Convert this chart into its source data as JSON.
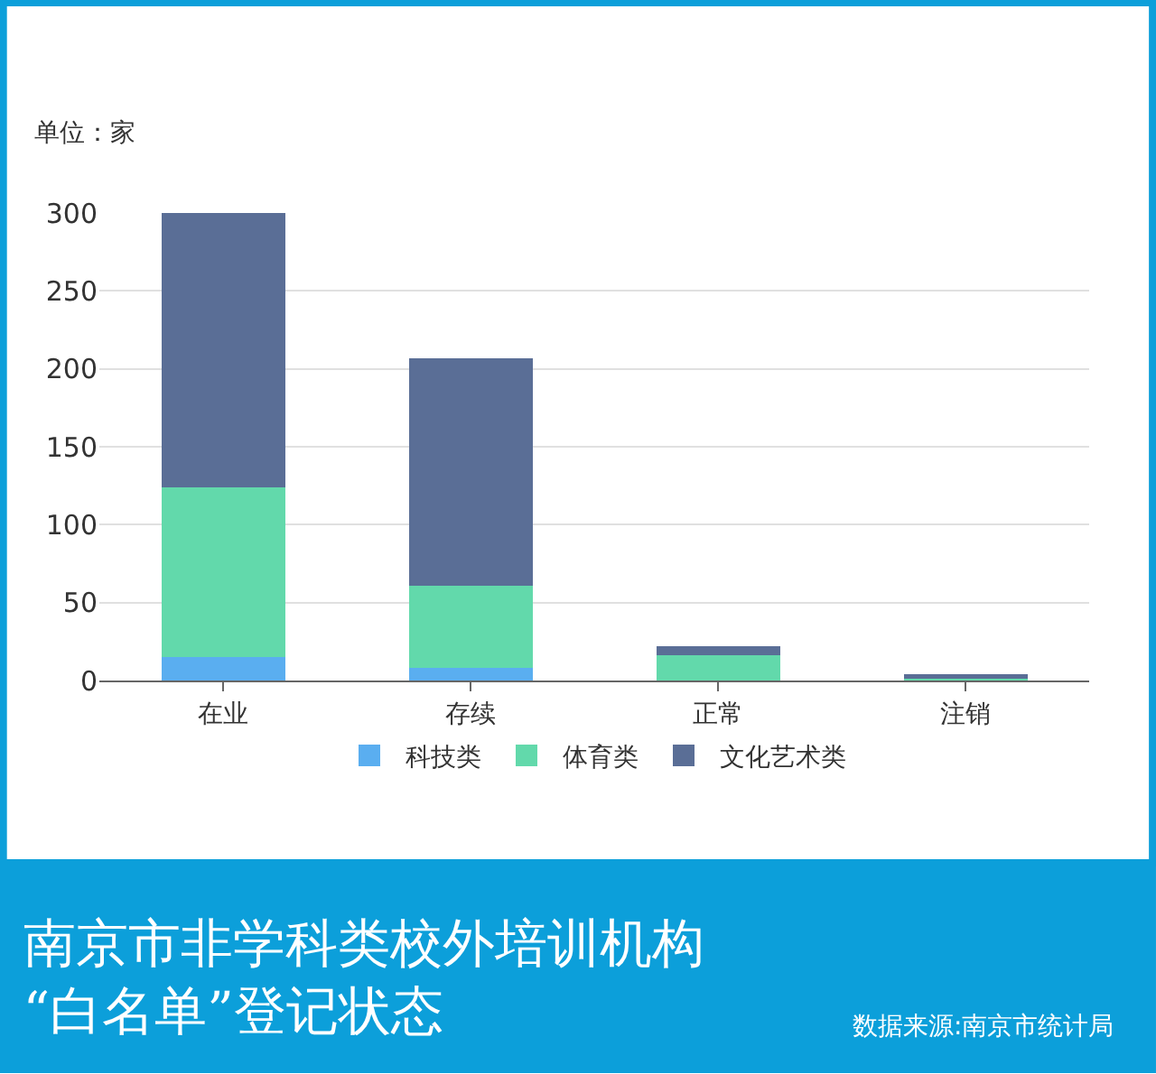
{
  "chart_data": {
    "type": "bar",
    "stacked": true,
    "title": "南京市非学科类校外培训机构\n“白名单”登记状态",
    "ylabel": "单位：家",
    "annotations": [
      "数据来源:南京市统计局"
    ],
    "categories": [
      "在业",
      "存续",
      "正常",
      "注销"
    ],
    "series": [
      {
        "name": "科技类",
        "color": "#5aaef0",
        "values": [
          15,
          8,
          0,
          0
        ]
      },
      {
        "name": "体育类",
        "color": "#62d9ab",
        "values": [
          109,
          53,
          16,
          1
        ]
      },
      {
        "name": "文化艺术类",
        "color": "#5a6e96",
        "values": [
          176,
          146,
          6,
          3
        ]
      }
    ],
    "ylim": [
      0,
      300
    ],
    "yticks": [
      0,
      50,
      100,
      150,
      200,
      250,
      300
    ],
    "grid": "y",
    "legend": "bottom"
  }
}
